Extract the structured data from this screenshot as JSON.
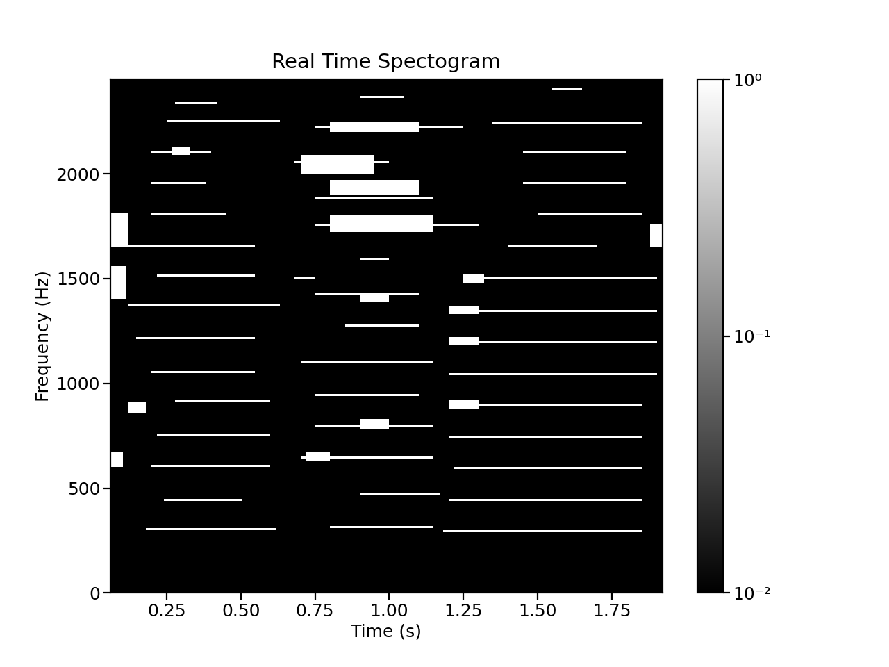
{
  "chart_data": {
    "type": "spectrogram",
    "title": "Real Time Spectogram",
    "x_label": "Time (s)",
    "y_label": "Frequency (Hz)",
    "xlim": [
      0.06,
      1.92
    ],
    "xticks": [
      {
        "value": 0.25,
        "label": "0.25"
      },
      {
        "value": 0.5,
        "label": "0.50"
      },
      {
        "value": 0.75,
        "label": "0.75"
      },
      {
        "value": 1.0,
        "label": "1.00"
      },
      {
        "value": 1.25,
        "label": "1.25"
      },
      {
        "value": 1.5,
        "label": "1.50"
      },
      {
        "value": 1.75,
        "label": "1.75"
      }
    ],
    "ylim": [
      0,
      2450
    ],
    "yticks": [
      0,
      500,
      1000,
      1500,
      2000
    ],
    "color_range": [
      0.01,
      1
    ],
    "color_ticks": [
      {
        "value": 0.01,
        "label": "10⁻²"
      },
      {
        "value": 0.1,
        "label": "10⁻¹"
      },
      {
        "value": 1,
        "label": "10⁰"
      }
    ],
    "segments": [
      [
        0.18,
        0.62,
        302,
        302
      ],
      [
        0.24,
        0.5,
        448,
        448
      ],
      [
        0.2,
        0.6,
        604,
        604
      ],
      [
        0.22,
        0.6,
        753,
        753
      ],
      [
        0.28,
        0.6,
        912,
        912
      ],
      [
        0.12,
        0.18,
        860,
        900
      ],
      [
        0.2,
        0.55,
        1051,
        1051
      ],
      [
        0.15,
        0.55,
        1211,
        1211
      ],
      [
        0.12,
        0.63,
        1370,
        1370
      ],
      [
        0.22,
        0.55,
        1512,
        1512
      ],
      [
        0.1,
        0.55,
        1652,
        1652
      ],
      [
        0.2,
        0.45,
        1801,
        1801
      ],
      [
        0.2,
        0.38,
        1950,
        1950
      ],
      [
        0.2,
        0.4,
        2106,
        2106
      ],
      [
        0.27,
        0.33,
        2090,
        2125
      ],
      [
        0.25,
        0.63,
        2259,
        2259
      ],
      [
        0.28,
        0.42,
        2332,
        2332
      ],
      [
        0.06,
        0.12,
        1650,
        1800
      ],
      [
        0.06,
        0.11,
        1400,
        1550
      ],
      [
        0.06,
        0.1,
        600,
        660
      ],
      [
        0.7,
        1.15,
        640,
        640
      ],
      [
        0.72,
        0.8,
        630,
        660
      ],
      [
        0.75,
        1.15,
        796,
        796
      ],
      [
        0.9,
        1.0,
        780,
        820
      ],
      [
        0.75,
        1.1,
        949,
        949
      ],
      [
        0.7,
        1.15,
        1104,
        1104
      ],
      [
        0.85,
        1.1,
        1277,
        1277
      ],
      [
        0.75,
        1.1,
        1420,
        1420
      ],
      [
        0.9,
        1.0,
        1390,
        1420
      ],
      [
        0.68,
        0.75,
        1500,
        1500
      ],
      [
        0.9,
        1.0,
        1595,
        1595
      ],
      [
        0.75,
        1.3,
        1751,
        1751
      ],
      [
        0.8,
        1.15,
        1720,
        1790
      ],
      [
        0.75,
        1.15,
        1884,
        1884
      ],
      [
        0.8,
        1.1,
        1900,
        1960
      ],
      [
        0.68,
        1.0,
        2050,
        2050
      ],
      [
        0.7,
        0.95,
        2000,
        2080
      ],
      [
        0.75,
        1.25,
        2226,
        2226
      ],
      [
        0.8,
        1.1,
        2200,
        2240
      ],
      [
        0.9,
        1.05,
        2365,
        2365
      ],
      [
        0.9,
        1.17,
        474,
        474
      ],
      [
        0.8,
        1.15,
        318,
        318
      ],
      [
        1.18,
        1.85,
        299,
        299
      ],
      [
        1.2,
        1.85,
        448,
        448
      ],
      [
        1.22,
        1.85,
        597,
        597
      ],
      [
        1.2,
        1.85,
        746,
        746
      ],
      [
        1.2,
        1.85,
        899,
        899
      ],
      [
        1.2,
        1.3,
        885,
        910
      ],
      [
        1.2,
        1.9,
        1045,
        1045
      ],
      [
        1.2,
        1.9,
        1197,
        1197
      ],
      [
        1.2,
        1.3,
        1185,
        1210
      ],
      [
        1.2,
        1.9,
        1347,
        1347
      ],
      [
        1.2,
        1.3,
        1335,
        1360
      ],
      [
        1.25,
        1.9,
        1502,
        1502
      ],
      [
        1.25,
        1.32,
        1480,
        1510
      ],
      [
        1.4,
        1.7,
        1655,
        1655
      ],
      [
        1.5,
        1.85,
        1801,
        1801
      ],
      [
        1.45,
        1.8,
        1950,
        1950
      ],
      [
        1.45,
        1.8,
        2103,
        2103
      ],
      [
        1.35,
        1.85,
        2245,
        2245
      ],
      [
        1.55,
        1.65,
        2405,
        2405
      ],
      [
        1.88,
        1.92,
        1650,
        1750
      ]
    ]
  }
}
